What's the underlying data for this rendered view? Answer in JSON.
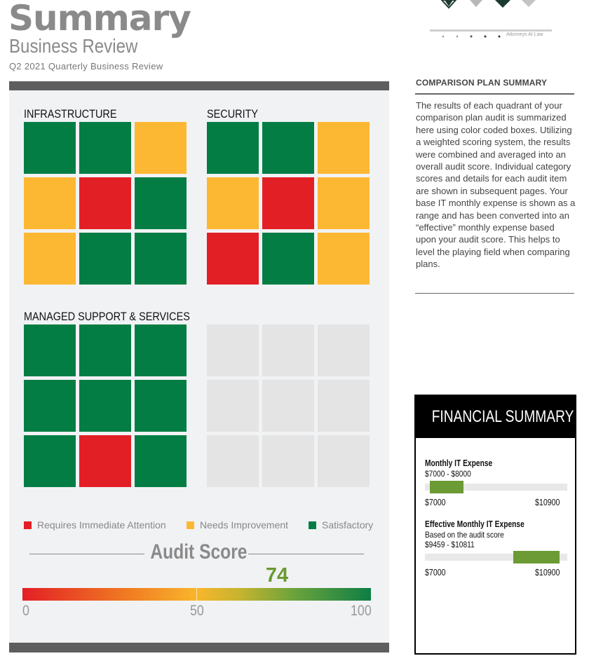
{
  "header": {
    "title": "Summary",
    "subtitle": "Business Review",
    "period": "Q2 2021 Quarterly Business Review"
  },
  "logo": {
    "tagline": "Attorneys At Law"
  },
  "quadrants": [
    {
      "title": "INFRASTRUCTURE",
      "cells": [
        "g",
        "g",
        "y",
        "y",
        "r",
        "g",
        "y",
        "g",
        "g"
      ]
    },
    {
      "title": "SECURITY",
      "cells": [
        "g",
        "g",
        "y",
        "y",
        "r",
        "y",
        "r",
        "g",
        "y"
      ]
    },
    {
      "title": "MANAGED SUPPORT & SERVICES",
      "cells": [
        "g",
        "g",
        "g",
        "g",
        "g",
        "g",
        "g",
        "r",
        "g"
      ]
    },
    {
      "title": "",
      "cells": [
        "e",
        "e",
        "e",
        "e",
        "e",
        "e",
        "e",
        "e",
        "e"
      ]
    }
  ],
  "legend": [
    {
      "label": "Requires Immediate Attention",
      "color": "#e31f26"
    },
    {
      "label": "Needs Improvement",
      "color": "#fdb833"
    },
    {
      "label": "Satisfactory",
      "color": "#047d44"
    }
  ],
  "audit": {
    "title": "Audit Score",
    "score": "74",
    "score_value": 74,
    "scale": {
      "min": "0",
      "mid": "50",
      "max": "100"
    }
  },
  "comparison": {
    "title": "COMPARISON PLAN SUMMARY",
    "body": "The results of each quadrant of your comparison plan audit is summarized here using color coded boxes. Utilizing a weighted scoring system, the results were combined and averaged into an overall audit score. Individual category scores and details for each audit item are shown in subsequent pages. Your base IT monthly expense is shown as a range and has been converted into an “effective” monthly expense based upon your audit score. This helps to level the playing field when comparing plans."
  },
  "financial": {
    "title": "FINANCIAL SUMMARY",
    "monthly": {
      "label": "Monthly IT Expense",
      "range": "$7000 - $8000",
      "low": 7000,
      "high": 8000,
      "axis_min": "$7000",
      "axis_max": "$10900"
    },
    "effective": {
      "label": "Effective Monthly IT Expense",
      "note": "Based on the audit score",
      "range": "$9459 - $10811",
      "low": 9459,
      "high": 10811,
      "axis_min": "$7000",
      "axis_max": "$10900"
    },
    "colors": {
      "bar": "#6c9a35",
      "track": "#e8e8e8"
    }
  }
}
